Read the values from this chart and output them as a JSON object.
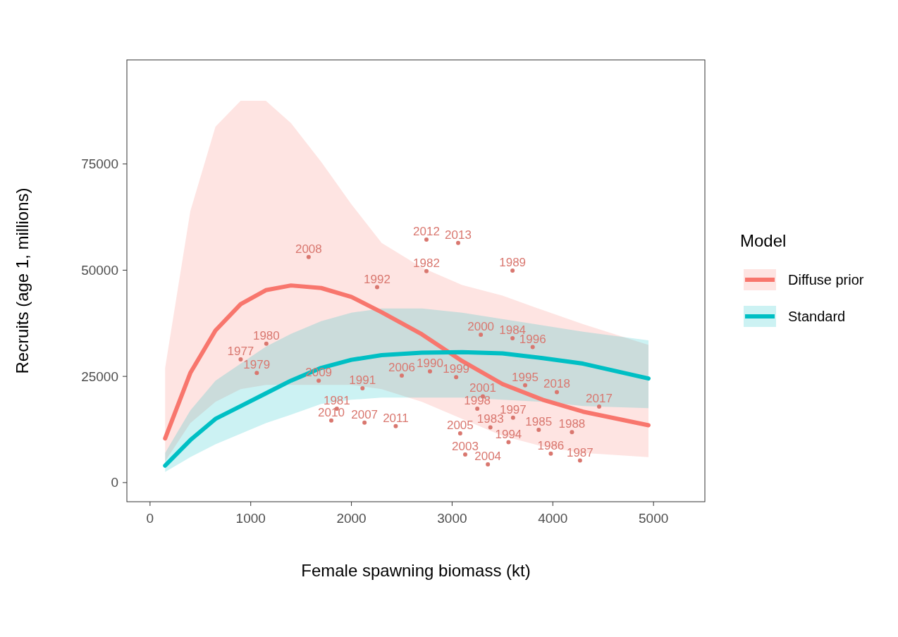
{
  "chart_data": {
    "type": "line",
    "xlabel": "Female spawning biomass (kt)",
    "ylabel": "Recruits (age 1, millions)",
    "legend_title": "Model",
    "legend": "right",
    "grid": false,
    "xlim": [
      -230,
      5510
    ],
    "xticks": [
      0,
      1000,
      2000,
      3000,
      4000,
      5000
    ],
    "ylim": [
      -4500,
      99500
    ],
    "yticks": [
      0,
      25000,
      50000,
      75000
    ],
    "x": [
      150,
      400,
      650,
      900,
      1150,
      1400,
      1700,
      2000,
      2300,
      2700,
      3100,
      3500,
      3900,
      4300,
      4950
    ],
    "series": [
      {
        "name": "Diffuse prior",
        "color": "#f8766d",
        "values": [
          10400,
          25800,
          35800,
          42000,
          45300,
          46400,
          45800,
          43700,
          40100,
          34900,
          28600,
          23200,
          19500,
          16700,
          13500
        ],
        "lower": [
          5000,
          14000,
          19000,
          22000,
          23000,
          23000,
          23000,
          23000,
          22000,
          19000,
          15000,
          11000,
          8500,
          7000,
          6000
        ],
        "upper": [
          27000,
          63900,
          83800,
          89900,
          89900,
          84600,
          75500,
          65500,
          56400,
          50600,
          46500,
          44000,
          40600,
          37300,
          32400
        ]
      },
      {
        "name": "Standard",
        "color": "#00bfc4",
        "values": [
          4000,
          10000,
          15000,
          18000,
          21000,
          24000,
          27000,
          28900,
          30000,
          30600,
          30700,
          30400,
          29300,
          28000,
          24500
        ],
        "lower": [
          2500,
          6000,
          9000,
          11500,
          14000,
          16000,
          18500,
          19500,
          20000,
          20000,
          20000,
          19500,
          19000,
          18000,
          17500
        ],
        "upper": [
          7000,
          17000,
          24000,
          28000,
          32000,
          35000,
          38000,
          40000,
          41000,
          41000,
          40000,
          38500,
          37000,
          35500,
          33500
        ]
      },
      {
        "type": "scatter",
        "marker": "circle",
        "name": "2008",
        "color": "#d9776f",
        "x": [
          1575
        ],
        "values": [
          53100
        ]
      },
      {
        "type": "scatter",
        "marker": "circle",
        "name": "1992",
        "color": "#d9776f",
        "x": [
          2255
        ],
        "values": [
          46000
        ]
      },
      {
        "type": "scatter",
        "marker": "circle",
        "name": "2012",
        "color": "#d9776f",
        "x": [
          2745
        ],
        "values": [
          57200
        ]
      },
      {
        "type": "scatter",
        "marker": "circle",
        "name": "2013",
        "color": "#d9776f",
        "x": [
          3060
        ],
        "values": [
          56400
        ]
      },
      {
        "type": "scatter",
        "marker": "circle",
        "name": "1982",
        "color": "#d9776f",
        "x": [
          2745
        ],
        "values": [
          49800
        ]
      },
      {
        "type": "scatter",
        "marker": "circle",
        "name": "1989",
        "color": "#d9776f",
        "x": [
          3600
        ],
        "values": [
          49900
        ]
      },
      {
        "type": "scatter",
        "marker": "circle",
        "name": "1980",
        "color": "#d9776f",
        "x": [
          1155
        ],
        "values": [
          32700
        ]
      },
      {
        "type": "scatter",
        "marker": "circle",
        "name": "1977",
        "color": "#d9776f",
        "x": [
          900
        ],
        "values": [
          29000
        ]
      },
      {
        "type": "scatter",
        "marker": "circle",
        "name": "1979",
        "color": "#d9776f",
        "x": [
          1060
        ],
        "values": [
          25800
        ]
      },
      {
        "type": "scatter",
        "marker": "circle",
        "name": "2009",
        "color": "#d9776f",
        "x": [
          1675
        ],
        "values": [
          24000
        ]
      },
      {
        "type": "scatter",
        "marker": "circle",
        "name": "1991",
        "color": "#d9776f",
        "x": [
          2110
        ],
        "values": [
          22200
        ]
      },
      {
        "type": "scatter",
        "marker": "circle",
        "name": "2006",
        "color": "#d9776f",
        "x": [
          2500
        ],
        "values": [
          25200
        ]
      },
      {
        "type": "scatter",
        "marker": "circle",
        "name": "1990",
        "color": "#d9776f",
        "x": [
          2780
        ],
        "values": [
          26200
        ]
      },
      {
        "type": "scatter",
        "marker": "circle",
        "name": "1999",
        "color": "#d9776f",
        "x": [
          3040
        ],
        "values": [
          24800
        ]
      },
      {
        "type": "scatter",
        "marker": "circle",
        "name": "2000",
        "color": "#d9776f",
        "x": [
          3285
        ],
        "values": [
          34800
        ]
      },
      {
        "type": "scatter",
        "marker": "circle",
        "name": "1984",
        "color": "#d9776f",
        "x": [
          3600
        ],
        "values": [
          34000
        ]
      },
      {
        "type": "scatter",
        "marker": "circle",
        "name": "1996",
        "color": "#d9776f",
        "x": [
          3800
        ],
        "values": [
          31900
        ]
      },
      {
        "type": "scatter",
        "marker": "circle",
        "name": "2001",
        "color": "#d9776f",
        "x": [
          3305
        ],
        "values": [
          20300
        ]
      },
      {
        "type": "scatter",
        "marker": "circle",
        "name": "1995",
        "color": "#d9776f",
        "x": [
          3725
        ],
        "values": [
          22900
        ]
      },
      {
        "type": "scatter",
        "marker": "circle",
        "name": "2018",
        "color": "#d9776f",
        "x": [
          4040
        ],
        "values": [
          21300
        ]
      },
      {
        "type": "scatter",
        "marker": "circle",
        "name": "2017",
        "color": "#d9776f",
        "x": [
          4460
        ],
        "values": [
          17900
        ]
      },
      {
        "type": "scatter",
        "marker": "circle",
        "name": "1981",
        "color": "#d9776f",
        "x": [
          1855
        ],
        "values": [
          17400
        ]
      },
      {
        "type": "scatter",
        "marker": "circle",
        "name": "2010",
        "color": "#d9776f",
        "x": [
          1800
        ],
        "values": [
          14600
        ]
      },
      {
        "type": "scatter",
        "marker": "circle",
        "name": "2007",
        "color": "#d9776f",
        "x": [
          2130
        ],
        "values": [
          14100
        ]
      },
      {
        "type": "scatter",
        "marker": "circle",
        "name": "2011",
        "color": "#d9776f",
        "x": [
          2440
        ],
        "values": [
          13300
        ]
      },
      {
        "type": "scatter",
        "marker": "circle",
        "name": "1998",
        "color": "#d9776f",
        "x": [
          3250
        ],
        "values": [
          17400
        ]
      },
      {
        "type": "scatter",
        "marker": "circle",
        "name": "1997",
        "color": "#d9776f",
        "x": [
          3605
        ],
        "values": [
          15300
        ]
      },
      {
        "type": "scatter",
        "marker": "circle",
        "name": "1983",
        "color": "#d9776f",
        "x": [
          3380
        ],
        "values": [
          13000
        ]
      },
      {
        "type": "scatter",
        "marker": "circle",
        "name": "2005",
        "color": "#d9776f",
        "x": [
          3080
        ],
        "values": [
          11600
        ]
      },
      {
        "type": "scatter",
        "marker": "circle",
        "name": "1994",
        "color": "#d9776f",
        "x": [
          3560
        ],
        "values": [
          9500
        ]
      },
      {
        "type": "scatter",
        "marker": "circle",
        "name": "1985",
        "color": "#d9776f",
        "x": [
          3860
        ],
        "values": [
          12400
        ]
      },
      {
        "type": "scatter",
        "marker": "circle",
        "name": "1988",
        "color": "#d9776f",
        "x": [
          4190
        ],
        "values": [
          11900
        ]
      },
      {
        "type": "scatter",
        "marker": "circle",
        "name": "2003",
        "color": "#d9776f",
        "x": [
          3130
        ],
        "values": [
          6600
        ]
      },
      {
        "type": "scatter",
        "marker": "circle",
        "name": "2004",
        "color": "#d9776f",
        "x": [
          3355
        ],
        "values": [
          4300
        ]
      },
      {
        "type": "scatter",
        "marker": "circle",
        "name": "1986",
        "color": "#d9776f",
        "x": [
          3980
        ],
        "values": [
          6800
        ]
      },
      {
        "type": "scatter",
        "marker": "circle",
        "name": "1987",
        "color": "#d9776f",
        "x": [
          4270
        ],
        "values": [
          5200
        ]
      }
    ]
  }
}
